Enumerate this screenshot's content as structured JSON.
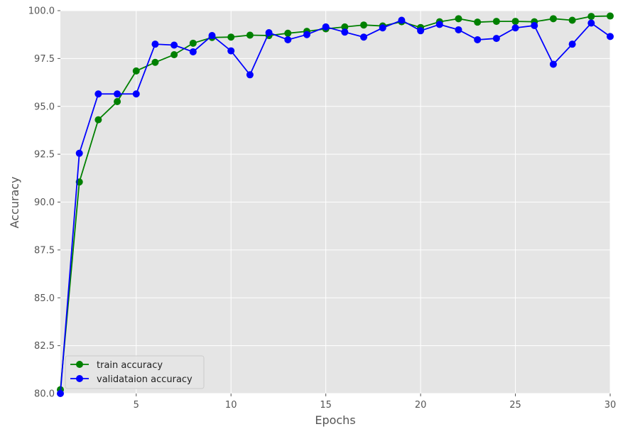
{
  "chart_data": {
    "type": "line",
    "title": "",
    "xlabel": "Epochs",
    "ylabel": "Accuracy",
    "xlim": [
      1,
      30
    ],
    "ylim": [
      80.0,
      100.0
    ],
    "x_ticks": [
      5,
      10,
      15,
      20,
      25,
      30
    ],
    "y_ticks": [
      80.0,
      82.5,
      85.0,
      87.5,
      90.0,
      92.5,
      95.0,
      97.5,
      100.0
    ],
    "x_tick_labels": [
      "5",
      "10",
      "15",
      "20",
      "25",
      "30"
    ],
    "y_tick_labels": [
      "80.0",
      "82.5",
      "85.0",
      "87.5",
      "90.0",
      "92.5",
      "95.0",
      "97.5",
      "100.0"
    ],
    "grid": true,
    "legend_position": "lower-left",
    "x": [
      1,
      2,
      3,
      4,
      5,
      6,
      7,
      8,
      9,
      10,
      11,
      12,
      13,
      14,
      15,
      16,
      17,
      18,
      19,
      20,
      21,
      22,
      23,
      24,
      25,
      26,
      27,
      28,
      29,
      30
    ],
    "series": [
      {
        "name": "train accuracy",
        "color": "#008000",
        "values": [
          80.2,
          91.05,
          94.3,
          95.25,
          96.85,
          97.3,
          97.7,
          98.3,
          98.6,
          98.62,
          98.72,
          98.7,
          98.82,
          98.92,
          99.05,
          99.15,
          99.25,
          99.2,
          99.42,
          99.12,
          99.42,
          99.58,
          99.4,
          99.44,
          99.44,
          99.42,
          99.58,
          99.5,
          99.7,
          99.72
        ]
      },
      {
        "name": "validataion accuracy",
        "color": "#0000ff",
        "values": [
          80.0,
          92.55,
          95.65,
          95.65,
          95.65,
          98.25,
          98.2,
          97.85,
          98.7,
          97.9,
          96.65,
          98.85,
          98.48,
          98.75,
          99.15,
          98.88,
          98.62,
          99.1,
          99.5,
          98.95,
          99.28,
          99.0,
          98.48,
          98.55,
          99.1,
          99.22,
          97.2,
          98.25,
          99.35,
          98.65
        ]
      }
    ]
  }
}
